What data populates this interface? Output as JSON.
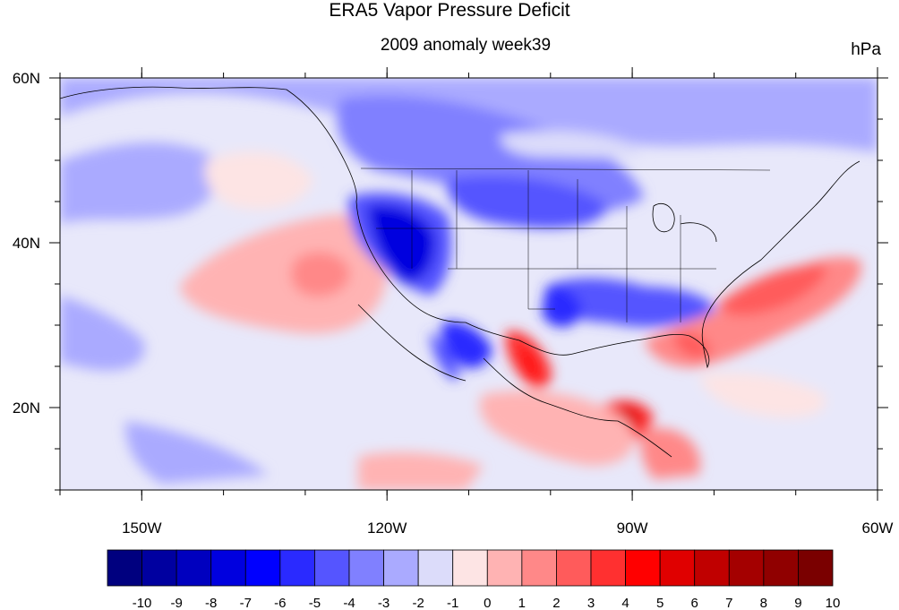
{
  "title": "ERA5 Vapor Pressure Deficit",
  "subtitle": "2009 anomaly week39",
  "units": "hPa",
  "map": {
    "lon_range": [
      -160,
      -60
    ],
    "lat_range": [
      10,
      60
    ],
    "x_ticks": [
      {
        "lon": -150,
        "label": "150W"
      },
      {
        "lon": -120,
        "label": "120W"
      },
      {
        "lon": -90,
        "label": "90W"
      },
      {
        "lon": -60,
        "label": "60W"
      }
    ],
    "y_ticks": [
      {
        "lat": 60,
        "label": "60N"
      },
      {
        "lat": 40,
        "label": "40N"
      },
      {
        "lat": 20,
        "label": "20N"
      }
    ]
  },
  "colorbar": {
    "labels": [
      "-10",
      "-9",
      "-8",
      "-7",
      "-6",
      "-5",
      "-4",
      "-3",
      "-2",
      "-1",
      "0",
      "1",
      "2",
      "3",
      "4",
      "5",
      "6",
      "7",
      "8",
      "9",
      "10"
    ],
    "colors": [
      "#00007f",
      "#0000a0",
      "#0000bf",
      "#0000df",
      "#0000ff",
      "#2a2aff",
      "#5555ff",
      "#8080ff",
      "#aaaaff",
      "#dcdcfa",
      "#fde4e4",
      "#ffb3b3",
      "#ff8888",
      "#ff5b5b",
      "#ff3030",
      "#ff0000",
      "#e00000",
      "#c00000",
      "#a40000",
      "#900000",
      "#7a0000"
    ]
  },
  "colors": {
    "ocean_neutral": "#e8e8fa",
    "coast": "#000000"
  }
}
